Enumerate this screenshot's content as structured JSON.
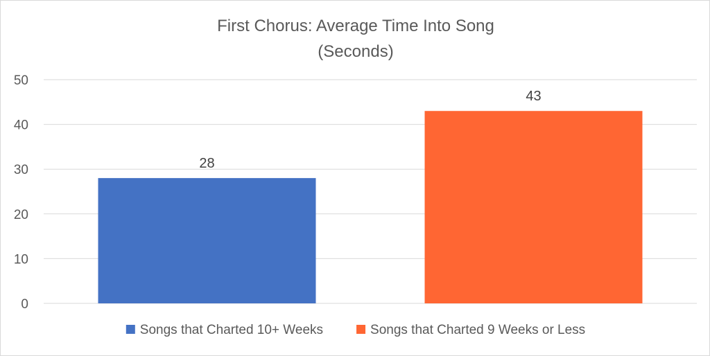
{
  "chart_data": {
    "type": "bar",
    "title": "First Chorus: Average Time Into Song",
    "subtitle": "(Seconds)",
    "categories": [
      ""
    ],
    "series": [
      {
        "name": "Songs that Charted 10+ Weeks",
        "values": [
          28
        ],
        "color": "#4472C4"
      },
      {
        "name": "Songs that Charted 9 Weeks or Less",
        "values": [
          43
        ],
        "color": "#FF6633"
      }
    ],
    "ylim": [
      0,
      50
    ],
    "yticks": [
      0,
      10,
      20,
      30,
      40,
      50
    ],
    "grid": true,
    "data_labels": true,
    "legend_position": "bottom"
  }
}
